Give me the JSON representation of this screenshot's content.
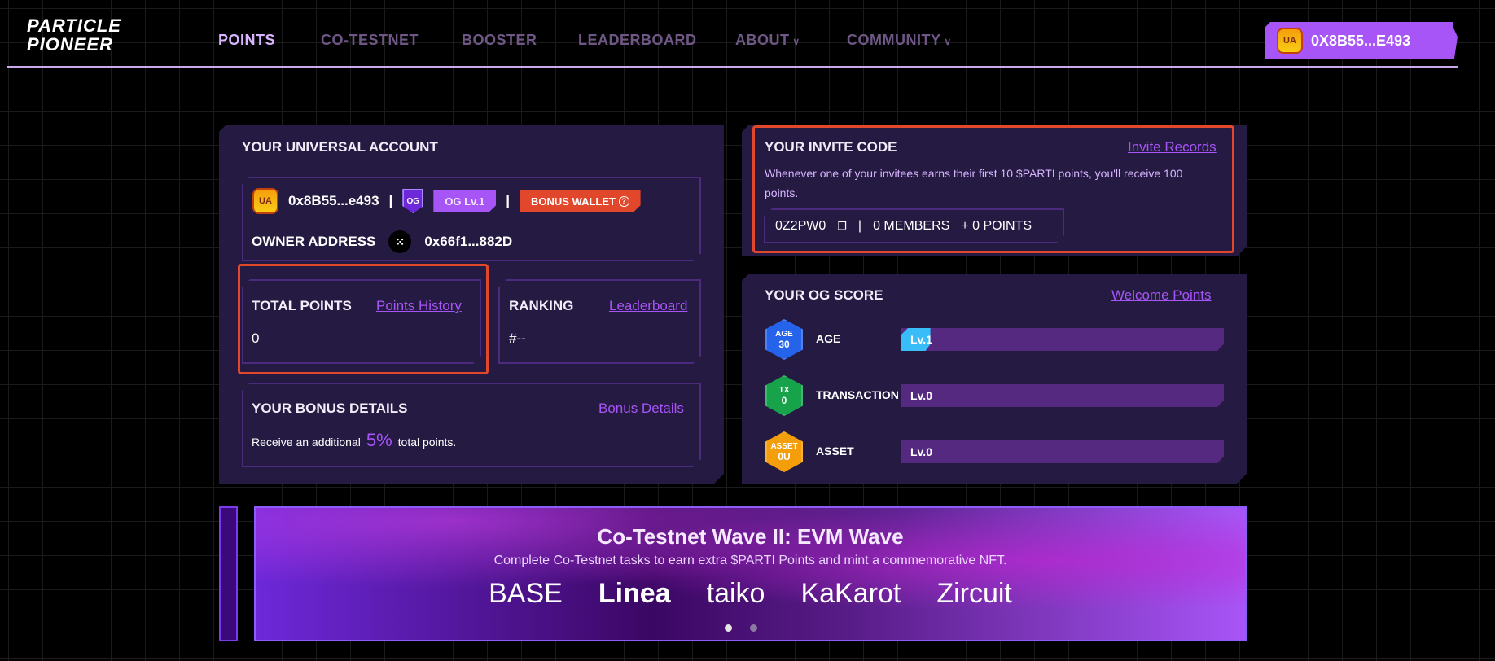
{
  "header": {
    "logo_line1": "PARTICLE",
    "logo_line2": "PIONEER",
    "nav": [
      {
        "label": "POINTS",
        "active": true
      },
      {
        "label": "CO-TESTNET"
      },
      {
        "label": "BOOSTER"
      },
      {
        "label": "LEADERBOARD"
      },
      {
        "label": "ABOUT"
      },
      {
        "label": "COMMUNITY"
      }
    ],
    "wallet": {
      "address": "0X8B55...E493",
      "icon": "ua-icon"
    }
  },
  "account": {
    "title": "YOUR UNIVERSAL ACCOUNT",
    "address": "0x8B55...e493",
    "separator": "|",
    "og_badge": "OG Lv.1",
    "og_icon": "OG",
    "bonus_wallet": "BONUS WALLET",
    "owner_label": "OWNER ADDRESS",
    "owner_address": "0x66f1...882D",
    "total_points": {
      "label": "TOTAL POINTS",
      "link": "Points History",
      "value": "0"
    },
    "ranking": {
      "label": "RANKING",
      "link": "Leaderboard",
      "value": "#--"
    },
    "bonus": {
      "title": "YOUR BONUS DETAILS",
      "link": "Bonus Details",
      "text_before": "Receive an additional",
      "percent": "5%",
      "text_after": "total points."
    }
  },
  "invite": {
    "title": "YOUR INVITE CODE",
    "link": "Invite Records",
    "description": "Whenever one of your invitees earns their first 10 $PARTI points, you'll receive 100 points.",
    "code": "0Z2PW0",
    "members": "0 MEMBERS",
    "points": "+ 0 POINTS"
  },
  "og_score": {
    "title": "YOUR OG SCORE",
    "link": "Welcome Points",
    "rows": [
      {
        "label": "AGE",
        "badge_top": "AGE",
        "badge_bottom": "30",
        "level": "Lv.1",
        "progress": 0.09,
        "color": "#2563eb"
      },
      {
        "label": "TRANSACTION",
        "badge_top": "TX",
        "badge_bottom": "0",
        "level": "Lv.0",
        "progress": 0,
        "color": "#16a34a"
      },
      {
        "label": "ASSET",
        "badge_top": "ASSET",
        "badge_bottom": "0U",
        "level": "Lv.0",
        "progress": 0,
        "color": "#f59e0b"
      }
    ]
  },
  "banner": {
    "title": "Co-Testnet Wave II: EVM Wave",
    "subtitle": "Complete Co-Testnet tasks to earn extra $PARTI Points and mint a commemorative NFT.",
    "logos": [
      "BASE",
      "Linea",
      "taiko",
      "KaKarot",
      "Zircuit"
    ],
    "active_slide": 1,
    "slides": 2
  },
  "colors": {
    "accent": "#a855f7",
    "highlight": "#e0472b",
    "panel": "#241a42"
  }
}
